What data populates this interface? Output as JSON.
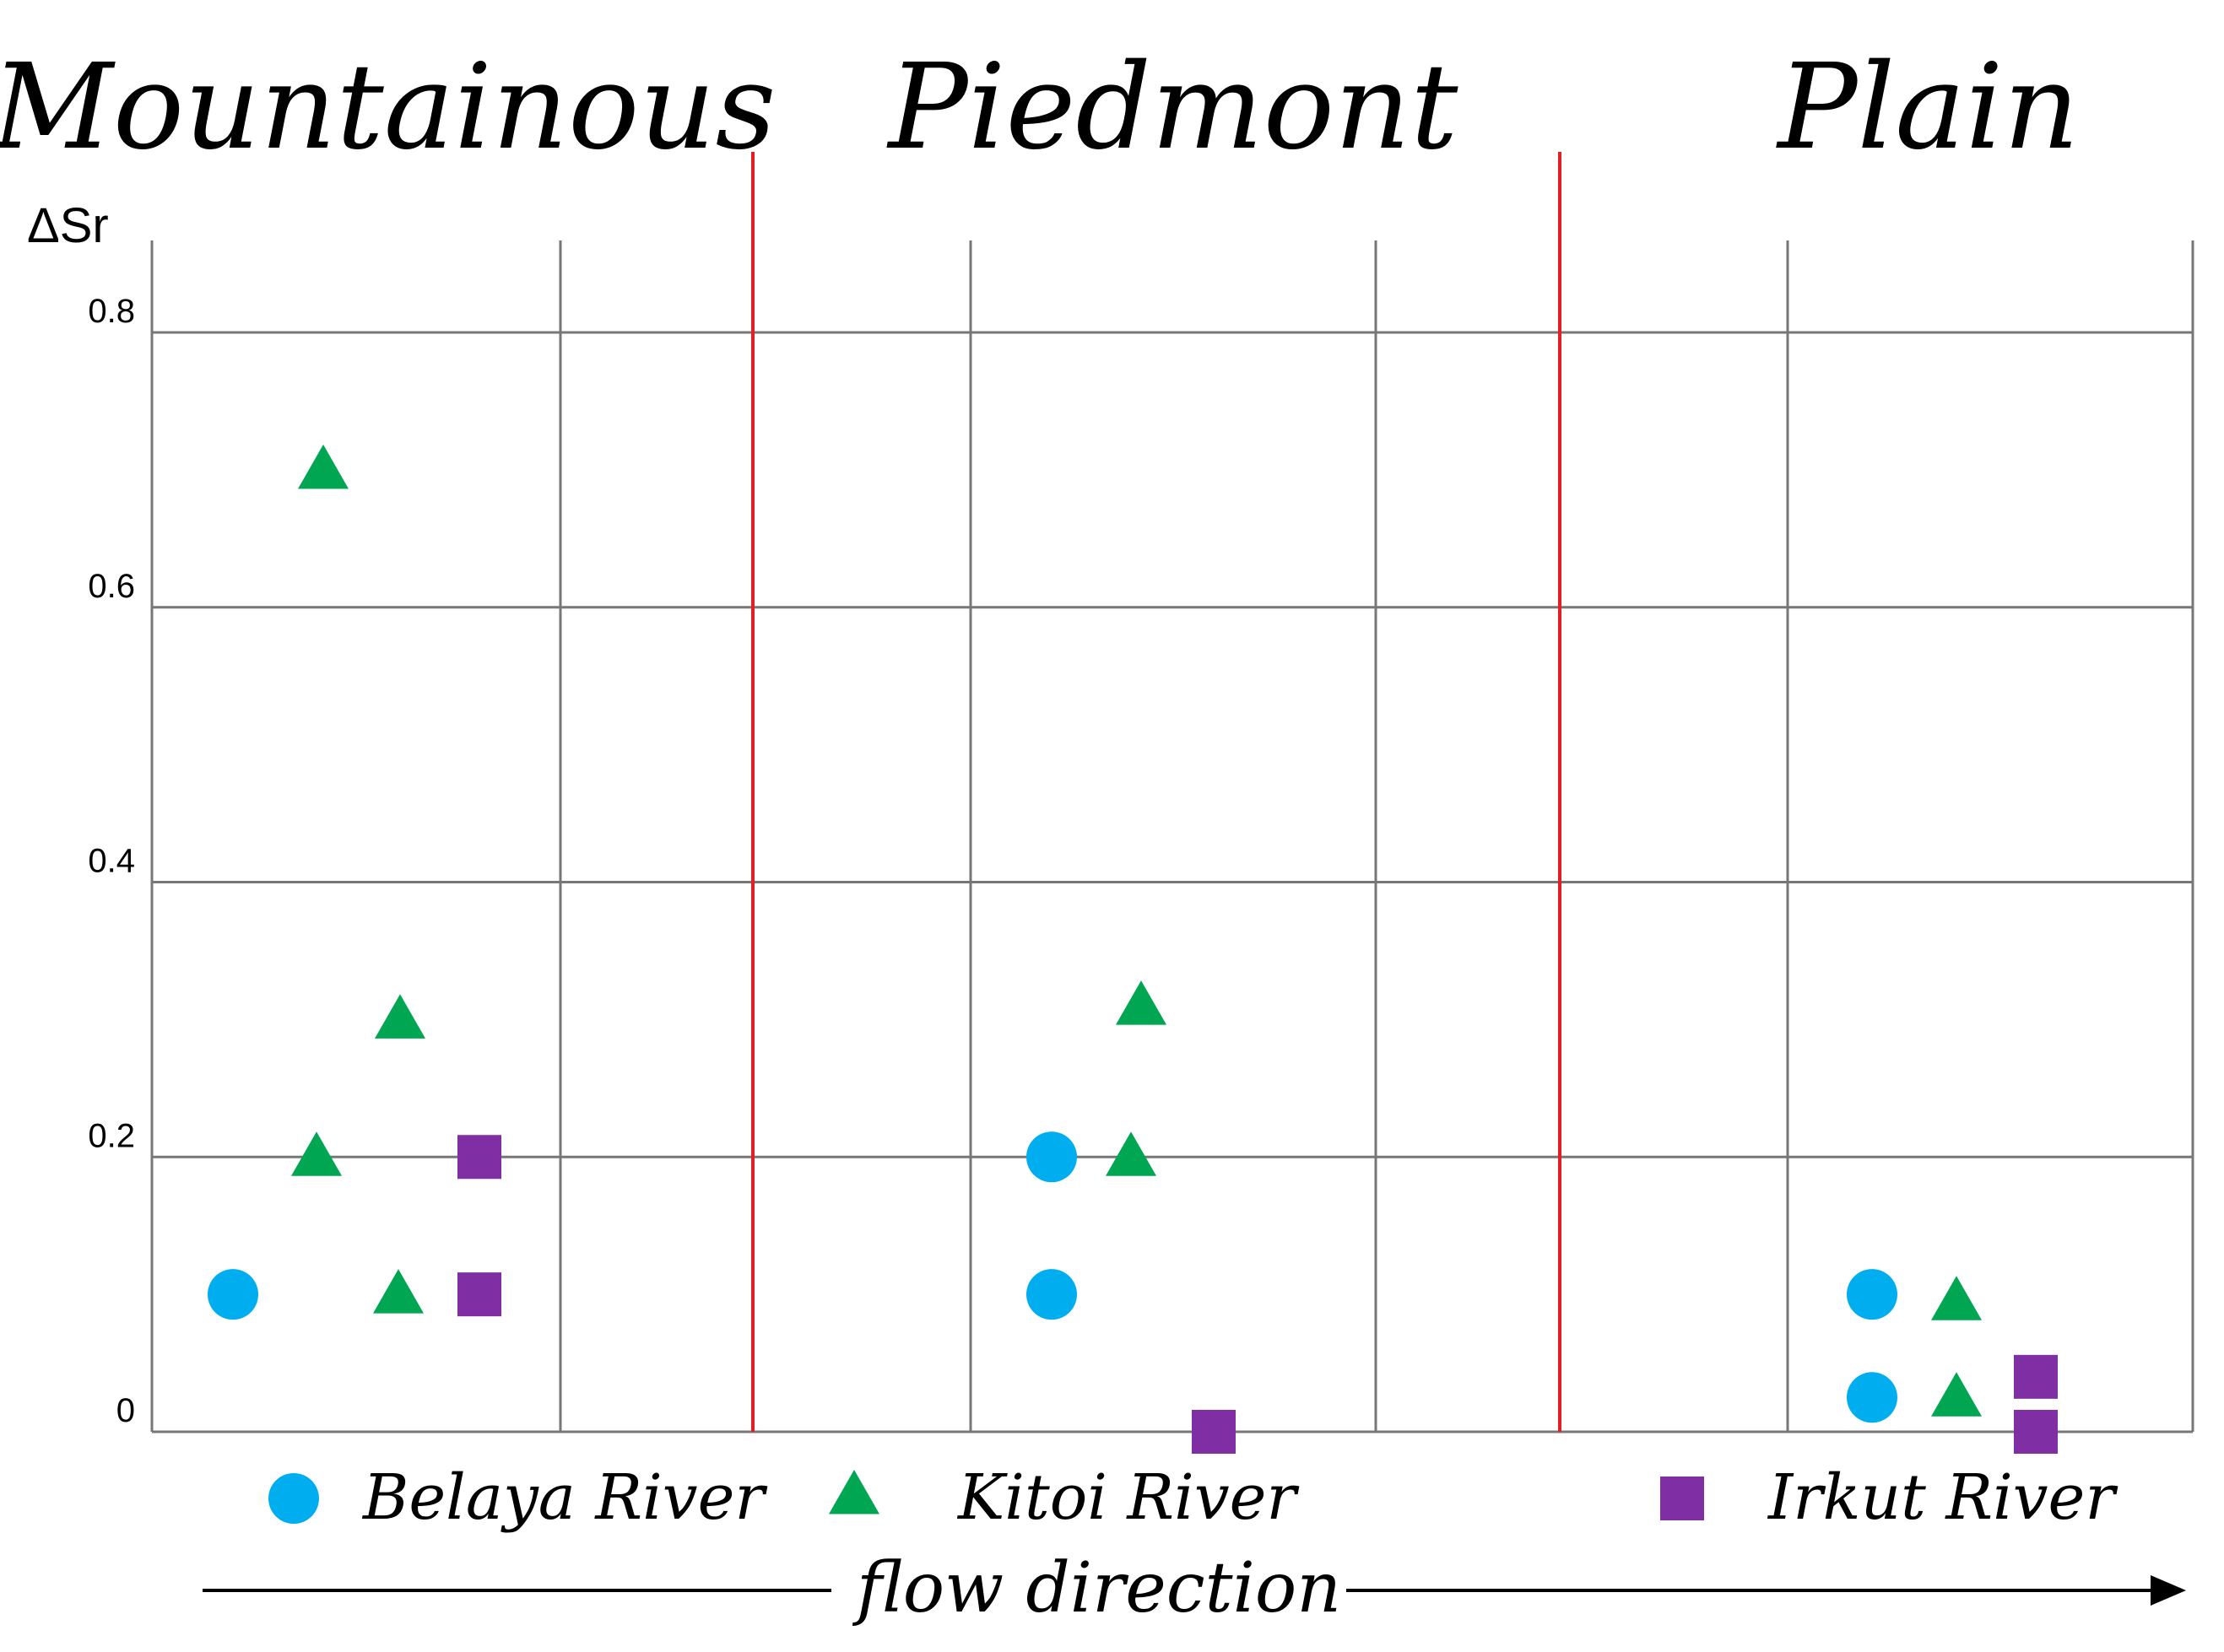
{
  "chart_data": {
    "type": "scatter",
    "zones": [
      "Mountainous",
      "Piedmont",
      "Plain"
    ],
    "ylabel": "ΔSr",
    "ylim": [
      0,
      0.8
    ],
    "yticks": [
      "0",
      "0.2",
      "0.4",
      "0.6",
      "0.8"
    ],
    "grid": true,
    "series": [
      {
        "name": "Belaya River",
        "marker": "circle",
        "color": "#00aeef",
        "points": [
          {
            "zone": "Mountainous",
            "y": 0.1
          },
          {
            "zone": "Piedmont",
            "y": 0.2
          },
          {
            "zone": "Piedmont",
            "y": 0.1
          },
          {
            "zone": "Plain",
            "y": 0.1
          },
          {
            "zone": "Plain",
            "y": 0.025
          }
        ]
      },
      {
        "name": "Kitoi River",
        "marker": "triangle",
        "color": "#00a651",
        "points": [
          {
            "zone": "Mountainous",
            "y": 0.7
          },
          {
            "zone": "Mountainous",
            "y": 0.3
          },
          {
            "zone": "Mountainous",
            "y": 0.2
          },
          {
            "zone": "Mountainous",
            "y": 0.1
          },
          {
            "zone": "Piedmont",
            "y": 0.31
          },
          {
            "zone": "Piedmont",
            "y": 0.2
          },
          {
            "zone": "Plain",
            "y": 0.095
          },
          {
            "zone": "Plain",
            "y": 0.025
          }
        ]
      },
      {
        "name": "Irkut River",
        "marker": "square",
        "color": "#7f2fa3",
        "points": [
          {
            "zone": "Mountainous",
            "y": 0.2
          },
          {
            "zone": "Mountainous",
            "y": 0.1
          },
          {
            "zone": "Piedmont",
            "y": 0.0
          },
          {
            "zone": "Plain",
            "y": 0.04
          },
          {
            "zone": "Plain",
            "y": 0.0
          }
        ]
      }
    ],
    "legend_position": "bottom",
    "flow_label": "flow direction",
    "colors": {
      "divider": "#e31e24",
      "grid": "#777777"
    }
  }
}
